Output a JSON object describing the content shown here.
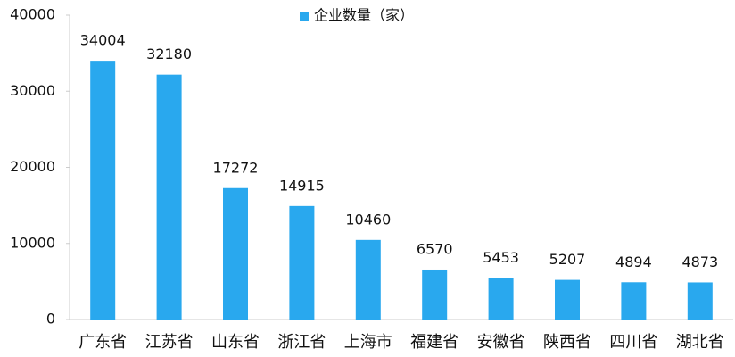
{
  "chart_data": {
    "type": "bar",
    "categories": [
      "广东省",
      "江苏省",
      "山东省",
      "浙江省",
      "上海市",
      "福建省",
      "安徽省",
      "陕西省",
      "四川省",
      "湖北省"
    ],
    "series": [
      {
        "name": "企业数量（家）",
        "color": "#29a8ee",
        "values": [
          34004,
          32180,
          17272,
          14915,
          10460,
          6570,
          5453,
          5207,
          4894,
          4873
        ]
      }
    ],
    "ylim": [
      0,
      40000
    ],
    "yticks": [
      0,
      10000,
      20000,
      30000,
      40000
    ],
    "legend": "top"
  }
}
